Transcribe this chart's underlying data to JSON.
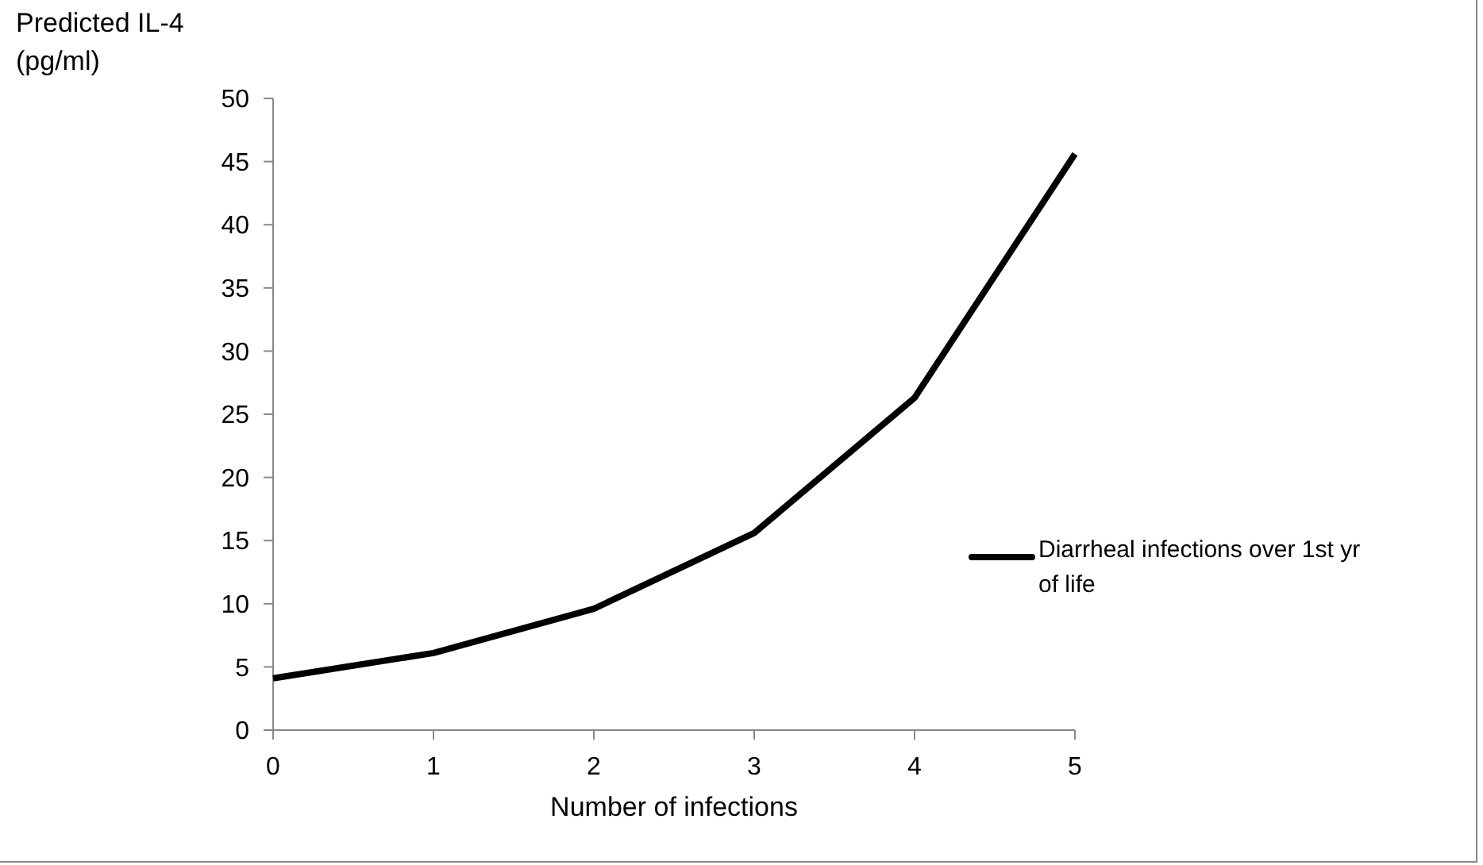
{
  "chart_data": {
    "type": "line",
    "ylabel": "Predicted IL-4 (pg/ml)",
    "xlabel": "Number of infections",
    "x": [
      0,
      1,
      2,
      3,
      4,
      5
    ],
    "xlim": [
      0,
      5
    ],
    "xticks": [
      0,
      1,
      2,
      3,
      4,
      5
    ],
    "ylim": [
      0,
      50
    ],
    "yticks": [
      0,
      5,
      10,
      15,
      20,
      25,
      30,
      35,
      40,
      45,
      50
    ],
    "series": [
      {
        "name": "Diarrheal infections over 1st yr of life",
        "color": "#000000",
        "values": [
          4.1,
          6.1,
          9.6,
          15.6,
          26.3,
          45.6
        ]
      }
    ],
    "legend": "right",
    "grid": false,
    "marker": "none",
    "line_style": "solid"
  }
}
